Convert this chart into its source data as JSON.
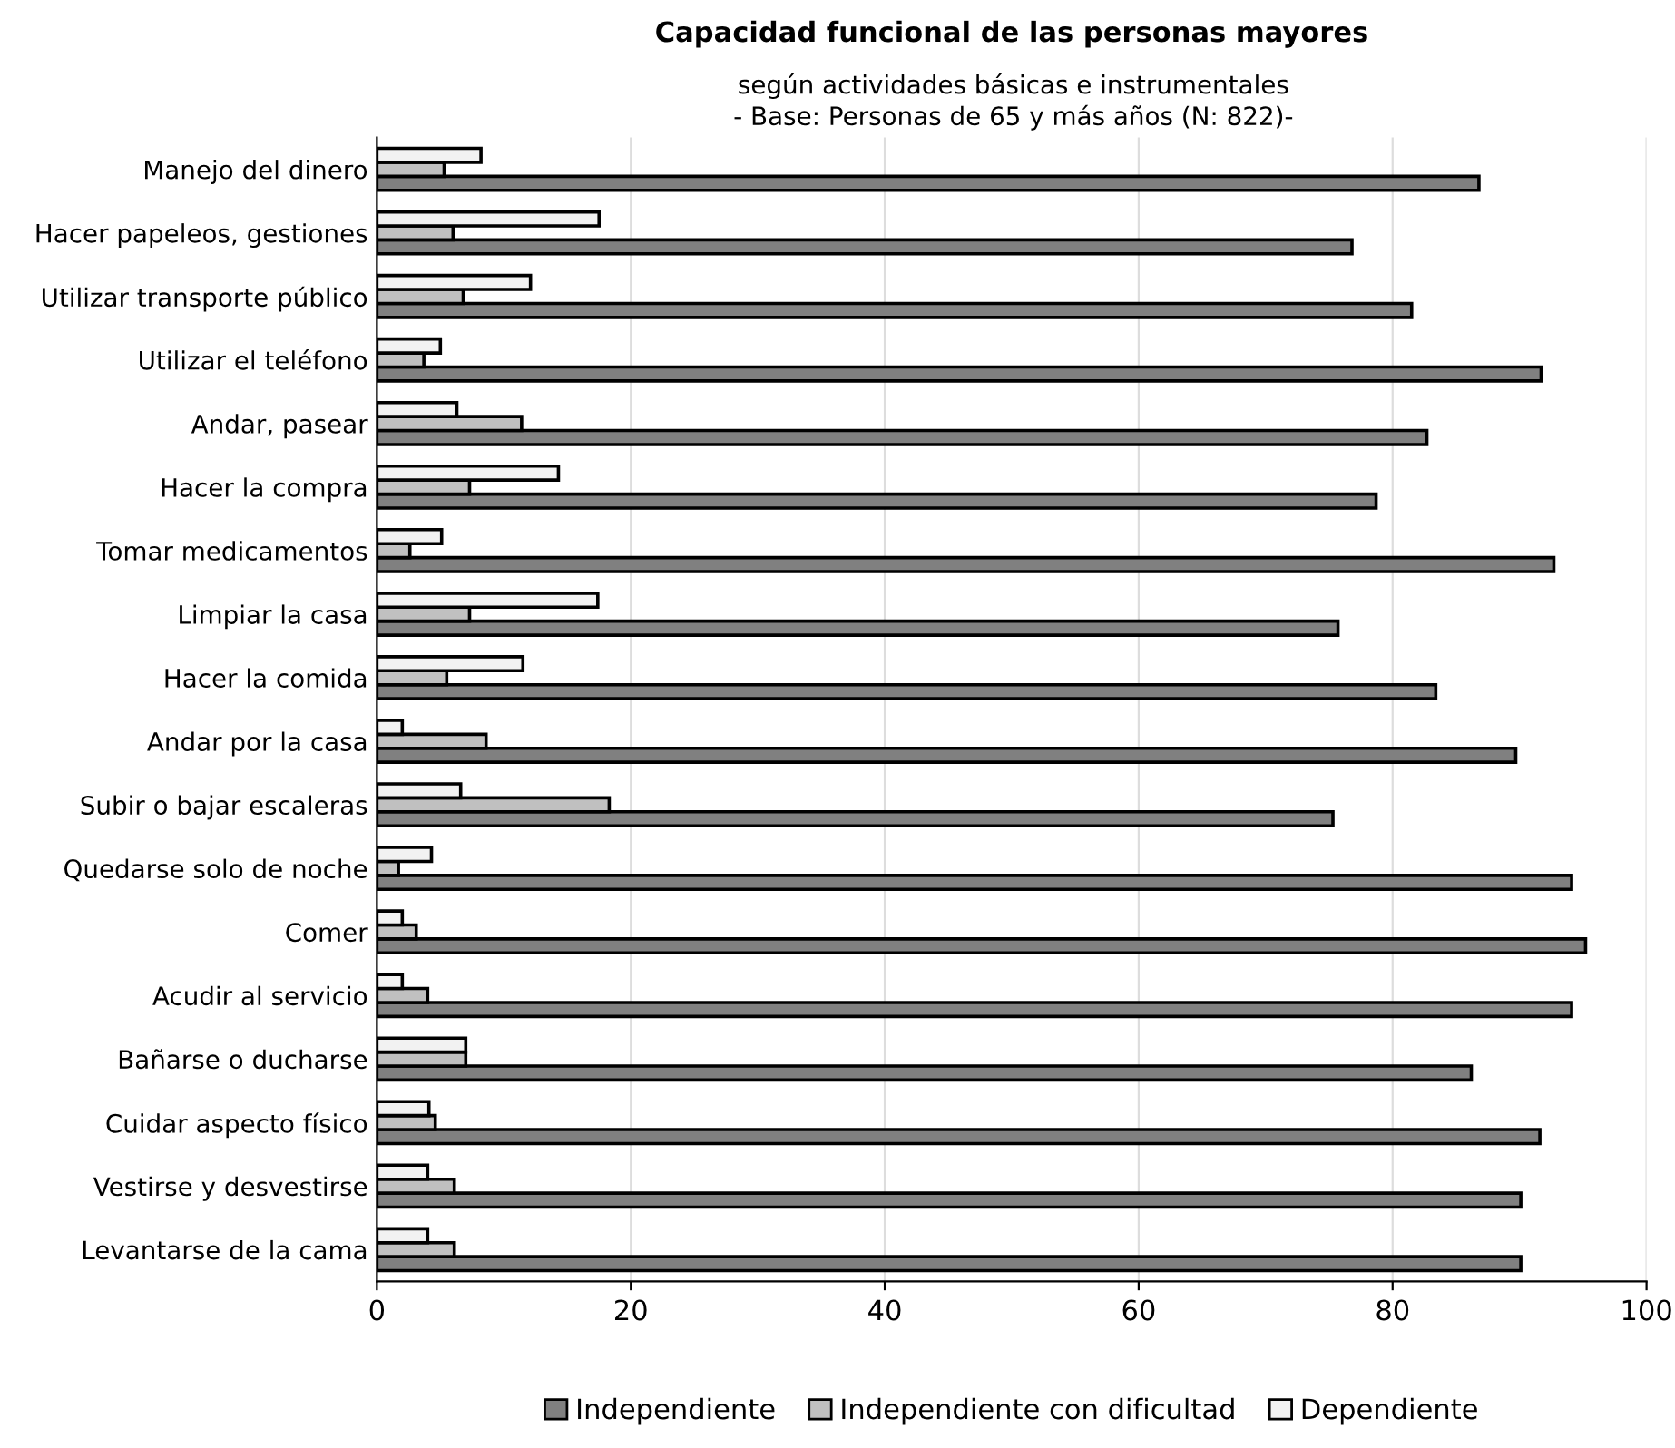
{
  "chart_data": {
    "type": "bar",
    "orientation": "horizontal",
    "title": "Capacidad funcional de las personas mayores",
    "subtitle": "según actividades básicas e instrumentales\n- Base: Personas de 65 y más años (N: 822)-",
    "categories": [
      "Manejo del dinero",
      "Hacer papeleos, gestiones",
      "Utilizar transporte público",
      "Utilizar el teléfono",
      "Andar, pasear",
      "Hacer la compra",
      "Tomar medicamentos",
      "Limpiar la casa",
      "Hacer la comida",
      "Andar por la casa",
      "Subir o bajar escaleras",
      "Quedarse solo de noche",
      "Comer",
      "Acudir al servicio",
      "Bañarse o ducharse",
      "Cuidar aspecto físico",
      "Vestirse y desvestirse",
      "Levantarse de la cama"
    ],
    "series": [
      {
        "name": "Independiente",
        "color": "#808080",
        "values": [
          86.8,
          76.8,
          81.5,
          91.7,
          82.7,
          78.7,
          92.7,
          75.7,
          83.4,
          89.7,
          75.3,
          94.1,
          95.2,
          94.1,
          86.2,
          91.6,
          90.1,
          90.1
        ]
      },
      {
        "name": "Independiente con dificultad",
        "color": "#c0c0c0",
        "values": [
          5.3,
          6.0,
          6.8,
          3.7,
          11.4,
          7.3,
          2.6,
          7.3,
          5.5,
          8.6,
          18.3,
          1.7,
          3.1,
          4.0,
          7.0,
          4.6,
          6.1,
          6.1
        ]
      },
      {
        "name": "Dependiente",
        "color": "#f2f2f2",
        "values": [
          8.2,
          17.5,
          12.1,
          5.0,
          6.3,
          14.3,
          5.1,
          17.4,
          11.5,
          2.0,
          6.6,
          4.3,
          2.0,
          2.0,
          7.0,
          4.1,
          4.0,
          4.0
        ]
      }
    ],
    "xlim": [
      0,
      100
    ],
    "xticks": [
      0,
      20,
      40,
      60,
      80,
      100
    ],
    "grid": "x",
    "legend": "bottom"
  }
}
